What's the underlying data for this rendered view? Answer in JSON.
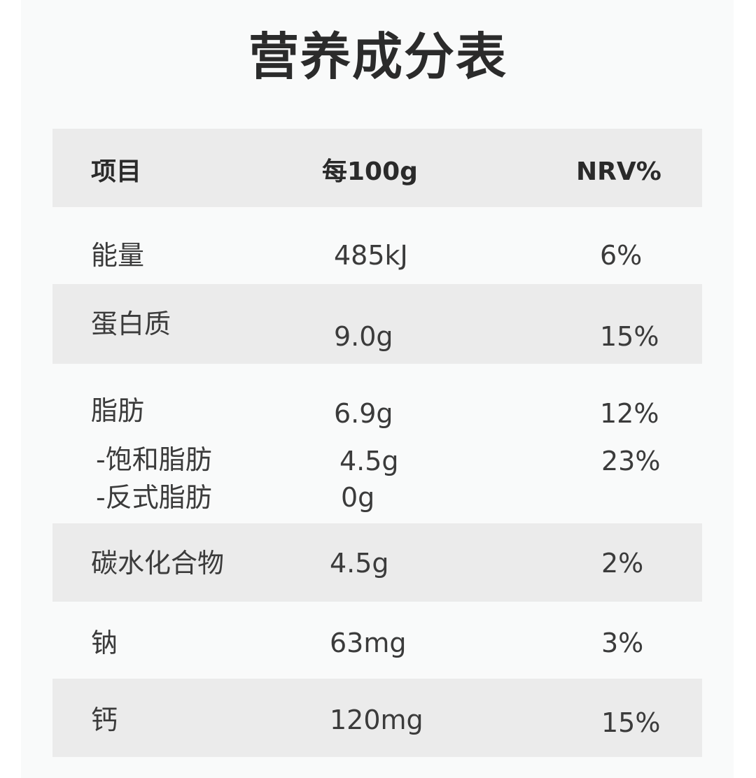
{
  "title": "营养成分表",
  "header": {
    "item": "项目",
    "per100g": "每100g",
    "nrv": "NRV%"
  },
  "rows": [
    {
      "item": "能量",
      "per100g": "485kJ",
      "nrv": "6%"
    },
    {
      "item": "蛋白质",
      "per100g": "9.0g",
      "nrv": "15%"
    },
    {
      "item": "脂肪",
      "per100g": "6.9g",
      "nrv": "12%"
    },
    {
      "item": "-饱和脂肪",
      "per100g": "4.5g",
      "nrv": "23%"
    },
    {
      "item": "-反式脂肪",
      "per100g": "0g",
      "nrv": ""
    },
    {
      "item": "碳水化合物",
      "per100g": "4.5g",
      "nrv": "2%"
    },
    {
      "item": "钠",
      "per100g": "63mg",
      "nrv": "3%"
    },
    {
      "item": "钙",
      "per100g": "120mg",
      "nrv": "15%"
    }
  ]
}
